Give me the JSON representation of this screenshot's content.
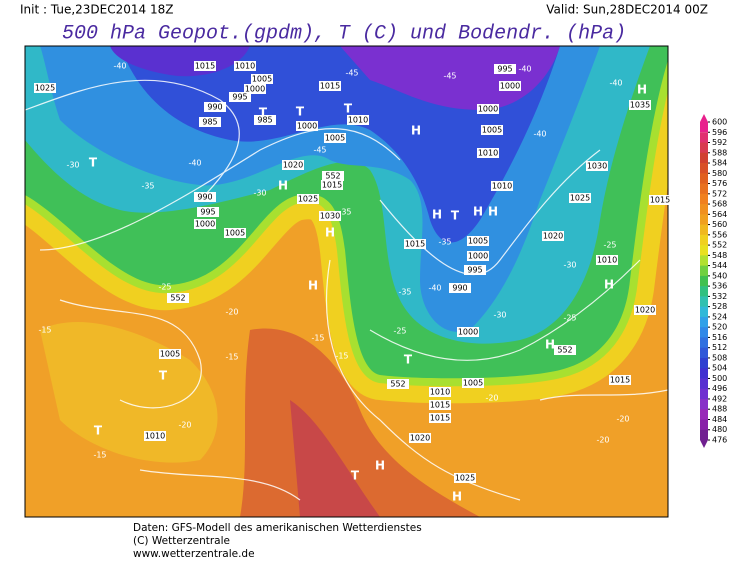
{
  "header": {
    "init": "Init : Tue,23DEC2014 18Z",
    "valid": "Valid: Sun,28DEC2014 00Z",
    "title": "500 hPa Geopot.(gpdm), T (C) und Bodendr. (hPa)"
  },
  "colorbar": {
    "ticks": [
      600,
      596,
      592,
      588,
      584,
      580,
      576,
      572,
      568,
      564,
      560,
      556,
      552,
      548,
      544,
      540,
      536,
      532,
      528,
      524,
      520,
      516,
      512,
      508,
      504,
      500,
      496,
      492,
      488,
      484,
      480,
      476
    ],
    "colors": [
      "#e8208c",
      "#e03070",
      "#d83a50",
      "#d04030",
      "#d85028",
      "#e06020",
      "#e87020",
      "#f08020",
      "#f09020",
      "#f0a020",
      "#f0b820",
      "#f0d020",
      "#e8e020",
      "#b0e030",
      "#70d040",
      "#40c050",
      "#30c080",
      "#30c0b0",
      "#30b8d8",
      "#30a0e8",
      "#3088e8",
      "#3070e0",
      "#3058d8",
      "#3040d0",
      "#4030d0",
      "#5830d0",
      "#7030d0",
      "#8830c8",
      "#9828b8",
      "#8820a8",
      "#702090"
    ]
  },
  "map": {
    "pressure": [
      1015,
      1010,
      1005,
      1000,
      995,
      990,
      985,
      985,
      1025,
      1015,
      1010,
      1005,
      1000,
      1020,
      1025,
      1030,
      1015,
      990,
      995,
      1000,
      1005,
      995,
      1000,
      1000,
      1005,
      1010,
      1035,
      1030,
      1025,
      1010,
      1015,
      1020,
      1010,
      1005,
      1000,
      995,
      990,
      1000,
      1005,
      1010,
      1015,
      1005,
      1010,
      1015,
      1020,
      1015,
      1025,
      1020,
      1015,
      552,
      552,
      552,
      552
    ],
    "temperature": [
      -40,
      -45,
      -45,
      -40,
      -30,
      -35,
      -40,
      -45,
      -30,
      -35,
      -40,
      -40,
      -35,
      -40,
      -35,
      -30,
      -30,
      -25,
      -25,
      -25,
      -20,
      -15,
      -15,
      -15,
      -15,
      -20,
      -15,
      -20,
      -20,
      -25,
      -20
    ],
    "markers": [
      "T",
      "T",
      "T",
      "T",
      "H",
      "H",
      "H",
      "H",
      "T",
      "T",
      "H",
      "H",
      "H",
      "H",
      "H",
      "T",
      "H",
      "T",
      "T",
      "H",
      "H"
    ]
  },
  "footer": {
    "line1": "Daten: GFS-Modell des amerikanischen Wetterdienstes",
    "line2": "(C) Wetterzentrale",
    "line3": "www.wetterzentrale.de"
  }
}
